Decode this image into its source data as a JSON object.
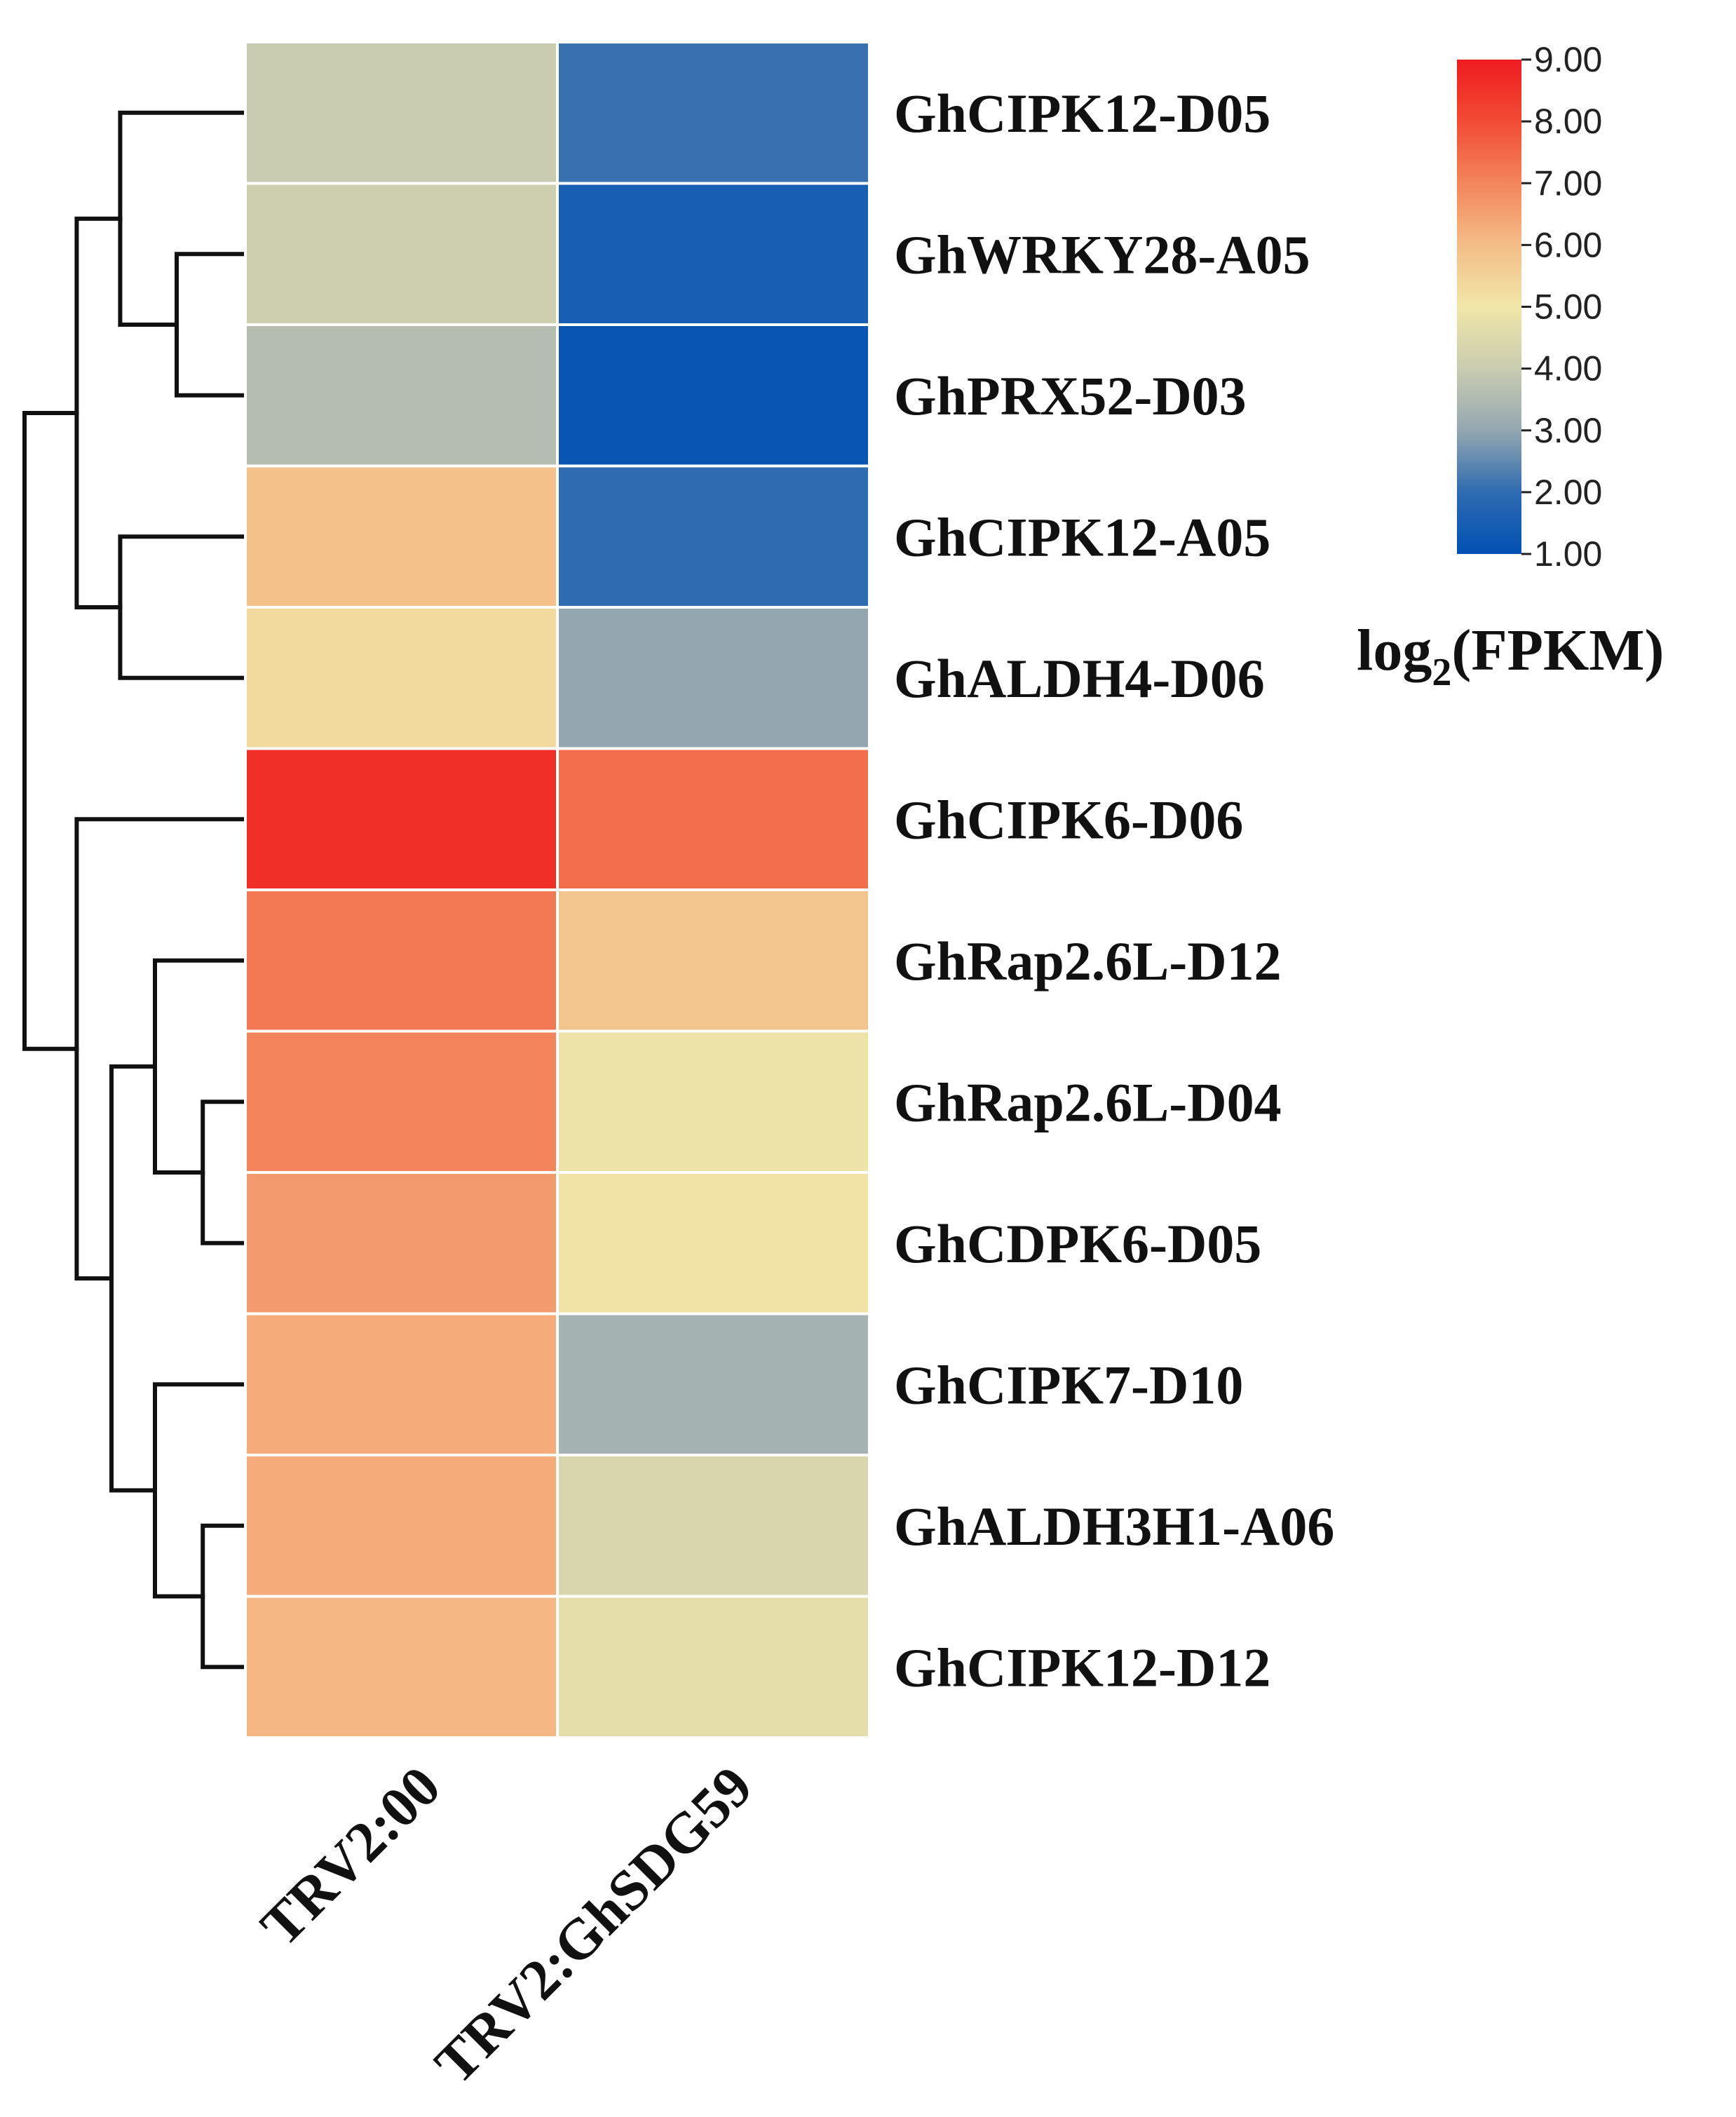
{
  "chart_data": {
    "type": "heatmap",
    "title": "",
    "columns": [
      "TRV2:00",
      "TRV2:GhSDG59"
    ],
    "rows": [
      "GhCIPK12-D05",
      "GhWRKY28-A05",
      "GhPRX52-D03",
      "GhCIPK12-A05",
      "GhALDH4-D06",
      "GhCIPK6-D06",
      "GhRap2.6L-D12",
      "GhRap2.6L-D04",
      "GhCDPK6-D05",
      "GhCIPK7-D10",
      "GhALDH3H1-A06",
      "GhCIPK12-D12"
    ],
    "values": [
      [
        4.0,
        2.1
      ],
      [
        4.1,
        1.5
      ],
      [
        3.6,
        1.2
      ],
      [
        5.9,
        2.0
      ],
      [
        5.3,
        3.0
      ],
      [
        8.6,
        7.4
      ],
      [
        7.2,
        5.8
      ],
      [
        7.0,
        4.9
      ],
      [
        6.6,
        5.1
      ],
      [
        6.3,
        3.3
      ],
      [
        6.3,
        4.4
      ],
      [
        6.1,
        4.7
      ]
    ],
    "colorbar": {
      "title": "log",
      "title_subscript": "2",
      "title_suffix": "(FPKM)",
      "min": 1.0,
      "max": 9.0,
      "ticks": [
        "9.00",
        "8.00",
        "7.00",
        "6.00",
        "5.00",
        "4.00",
        "3.00",
        "2.00",
        "1.00"
      ],
      "tick_values": [
        9,
        8,
        7,
        6,
        5,
        4,
        3,
        2,
        1
      ],
      "color_stops": [
        {
          "value": 1.0,
          "color": "#0050b4"
        },
        {
          "value": 2.0,
          "color": "#2f6bb0"
        },
        {
          "value": 3.0,
          "color": "#94a7b1"
        },
        {
          "value": 4.0,
          "color": "#c9ccb0"
        },
        {
          "value": 5.0,
          "color": "#f1e6a8"
        },
        {
          "value": 6.0,
          "color": "#f4bd88"
        },
        {
          "value": 7.0,
          "color": "#f3855c"
        },
        {
          "value": 8.0,
          "color": "#f24b34"
        },
        {
          "value": 9.0,
          "color": "#ee1c20"
        }
      ]
    },
    "dendrogram": {
      "orientation": "left",
      "merges": [
        [
          1,
          2
        ],
        [
          0,
          "m0"
        ],
        [
          3,
          4
        ],
        [
          "m1",
          "m2"
        ],
        [
          7,
          8
        ],
        [
          6,
          "m4"
        ],
        [
          10,
          11
        ],
        [
          9,
          "m6"
        ],
        [
          "m5",
          "m7"
        ],
        [
          5,
          "m8"
        ],
        [
          "m3",
          "m9"
        ]
      ],
      "merge_heights": [
        0.3,
        0.56,
        0.56,
        0.76,
        0.18,
        0.4,
        0.18,
        0.4,
        0.6,
        0.76,
        1.0
      ]
    }
  }
}
